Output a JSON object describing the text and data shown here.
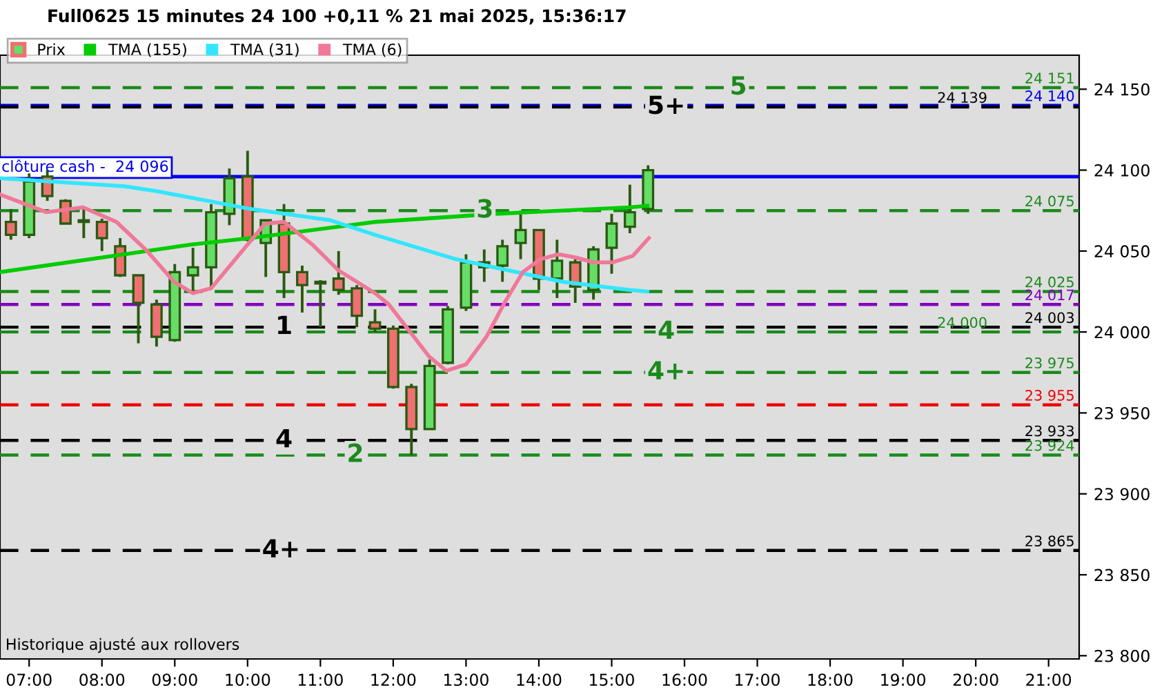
{
  "chart_data": {
    "type": "candlestick",
    "title": "Full0625 15 minutes 24 100 +0,11 % 21 mai 2025, 15:36:17",
    "xlim": [
      6.6,
      21.42
    ],
    "ylim": [
      23798,
      24171
    ],
    "xticks": [
      {
        "value": 7,
        "label": "07:00"
      },
      {
        "value": 8,
        "label": "08:00"
      },
      {
        "value": 9,
        "label": "09:00"
      },
      {
        "value": 10,
        "label": "10:00"
      },
      {
        "value": 11,
        "label": "11:00"
      },
      {
        "value": 12,
        "label": "12:00"
      },
      {
        "value": 13,
        "label": "13:00"
      },
      {
        "value": 14,
        "label": "14:00"
      },
      {
        "value": 15,
        "label": "15:00"
      },
      {
        "value": 16,
        "label": "16:00"
      },
      {
        "value": 17,
        "label": "17:00"
      },
      {
        "value": 18,
        "label": "18:00"
      },
      {
        "value": 19,
        "label": "19:00"
      },
      {
        "value": 20,
        "label": "20:00"
      },
      {
        "value": 21,
        "label": "21:00"
      }
    ],
    "yticks": [
      {
        "value": 23800,
        "label": "23 800"
      },
      {
        "value": 23850,
        "label": "23 850"
      },
      {
        "value": 23900,
        "label": "23 900"
      },
      {
        "value": 23950,
        "label": "23 950"
      },
      {
        "value": 24000,
        "label": "24 000"
      },
      {
        "value": 24050,
        "label": "24 050"
      },
      {
        "value": 24100,
        "label": "24 100"
      },
      {
        "value": 24150,
        "label": "24 150"
      }
    ],
    "grid": false,
    "legend": "top left",
    "series": [
      {
        "name": "Prix",
        "colors": [
          "#ee7070",
          "#66dd66",
          "#ee7070",
          "#ee7070",
          "#66dd66",
          "#ee7070",
          "#ee7070",
          "#ee7070",
          "#ee7070",
          "#66dd66",
          "#66dd66",
          "#66dd66",
          "#66dd66",
          "#ee7070",
          "#66dd66",
          "#ee7070",
          "#ee7070",
          "#66dd66",
          "#ee7070",
          "#ee7070",
          "#ee7070",
          "#ee7070",
          "#ee7070",
          "#66dd66",
          "#66dd66",
          "#66dd66",
          "#ee7070",
          "#66dd66",
          "#66dd66",
          "#ee7070",
          "#66dd66",
          "#ee7070",
          "#66dd66",
          "#66dd66",
          "#66dd66",
          "#66dd66"
        ],
        "x": [
          6.75,
          7.0,
          7.25,
          7.5,
          7.75,
          8.0,
          8.25,
          8.5,
          8.75,
          9.0,
          9.25,
          9.5,
          9.75,
          10.0,
          10.25,
          10.5,
          10.75,
          11.0,
          11.25,
          11.5,
          11.75,
          12.0,
          12.25,
          12.5,
          12.75,
          13.0,
          13.25,
          13.5,
          13.75,
          14.0,
          14.25,
          14.5,
          14.75,
          15.0,
          15.25,
          15.5
        ],
        "ohlc": [
          [
            24068,
            24076,
            24057,
            24060
          ],
          [
            24060,
            24098,
            24058,
            24093
          ],
          [
            24096,
            24100,
            24081,
            24084
          ],
          [
            24081,
            24082,
            24067,
            24067
          ],
          [
            24068,
            24077,
            24058,
            24069
          ],
          [
            24068,
            24070,
            24050,
            24058
          ],
          [
            24053,
            24058,
            24034,
            24035
          ],
          [
            24035,
            24035,
            23993,
            24018
          ],
          [
            24017,
            24020,
            23991,
            23997
          ],
          [
            23995,
            24042,
            23994,
            24037
          ],
          [
            24035,
            24052,
            24024,
            24040
          ],
          [
            24040,
            24079,
            24028,
            24074
          ],
          [
            24073,
            24101,
            24066,
            24095
          ],
          [
            24096,
            24112,
            24056,
            24057
          ],
          [
            24055,
            24069,
            24034,
            24069
          ],
          [
            24067,
            24079,
            24021,
            24037
          ],
          [
            24037,
            24041,
            24012,
            24029
          ],
          [
            24030,
            24032,
            24003,
            24031
          ],
          [
            24033,
            24050,
            24023,
            24026
          ],
          [
            24027,
            24029,
            24003,
            24010
          ],
          [
            24006,
            24014,
            24000,
            24002
          ],
          [
            24002,
            24004,
            23965,
            23966
          ],
          [
            23966,
            23968,
            23924,
            23940
          ],
          [
            23940,
            23983,
            23940,
            23979
          ],
          [
            23981,
            24016,
            23980,
            24014
          ],
          [
            24015,
            24048,
            24013,
            24043
          ],
          [
            24043,
            24051,
            24031,
            24040
          ],
          [
            24041,
            24057,
            24031,
            24053
          ],
          [
            24055,
            24075,
            24045,
            24063
          ],
          [
            24063,
            24063,
            24026,
            24033
          ],
          [
            24033,
            24057,
            24021,
            24044
          ],
          [
            24043,
            24045,
            24018,
            24028
          ],
          [
            24026,
            24053,
            24020,
            24051
          ],
          [
            24052,
            24073,
            24036,
            24067
          ],
          [
            24065,
            24091,
            24061,
            24074
          ],
          [
            24076,
            24103,
            24073,
            24100
          ]
        ]
      },
      {
        "name": "TMA (155)",
        "type": "line",
        "color": "#00cc00",
        "x": [
          6.6,
          8.31,
          9.22,
          10.04,
          11.75,
          13.41,
          15.25,
          15.49
        ],
        "values": [
          24037,
          24048,
          24054,
          24058,
          24068,
          24073,
          24077,
          24078
        ]
      },
      {
        "name": "TMA (31)",
        "type": "line",
        "color": "#33e6ff",
        "x": [
          6.6,
          8.31,
          8.75,
          10.04,
          11.14,
          11.75,
          12.86,
          13.59,
          14.33,
          15.25,
          15.49
        ],
        "values": [
          24095,
          24090,
          24087,
          24076,
          24069,
          24060,
          24045,
          24038,
          24031,
          24026,
          24025
        ]
      },
      {
        "name": "TMA (6)",
        "type": "line",
        "color": "#f07898",
        "x": [
          6.6,
          6.83,
          7.24,
          7.74,
          8.2,
          8.62,
          8.99,
          9.25,
          9.5,
          10.24,
          10.5,
          10.89,
          11.25,
          11.75,
          11.94,
          12.25,
          12.49,
          12.73,
          13.0,
          13.28,
          13.54,
          13.78,
          14.02,
          14.27,
          14.51,
          14.75,
          15.01,
          15.29,
          15.51
        ],
        "values": [
          24085,
          24081,
          24074,
          24077,
          24068,
          24050,
          24031,
          24024,
          24027,
          24067,
          24068,
          24054,
          24038,
          24024,
          24017,
          23999,
          23985,
          23976,
          23980,
          23997,
          24019,
          24037,
          24045,
          24048,
          24046,
          24043,
          24043,
          24047,
          24058
        ]
      }
    ],
    "ref_lines": [
      {
        "axis": "y",
        "value": 24151,
        "label": "24 151",
        "color": "#1a8a1a",
        "line_style": "dashed"
      },
      {
        "axis": "y",
        "value": 24140,
        "label": "24 140",
        "color": "#0000ee",
        "line_style": "dashed"
      },
      {
        "axis": "y",
        "value": 24139,
        "label": "24 139",
        "color": "#000000",
        "line_style": "dashed"
      },
      {
        "axis": "y",
        "value": 24096,
        "label": "clôture cash -  24 096",
        "color": "#0000ee",
        "line_style": "solid"
      },
      {
        "axis": "y",
        "value": 24075,
        "label": "24 075",
        "color": "#1a8a1a",
        "line_style": "dashed"
      },
      {
        "axis": "y",
        "value": 24025,
        "label": "24 025",
        "color": "#1a8a1a",
        "line_style": "dashed"
      },
      {
        "axis": "y",
        "value": 24017,
        "label": "24 017",
        "color": "#8000c0",
        "line_style": "dashed"
      },
      {
        "axis": "y",
        "value": 24003,
        "label": "24 003",
        "color": "#000000",
        "line_style": "dashed"
      },
      {
        "axis": "y",
        "value": 24000,
        "label": "24 000",
        "color": "#1a8a1a",
        "line_style": "dashed"
      },
      {
        "axis": "y",
        "value": 23975,
        "label": "23 975",
        "color": "#1a8a1a",
        "line_style": "dashed"
      },
      {
        "axis": "y",
        "value": 23955,
        "label": "23 955",
        "color": "#ee0000",
        "line_style": "dashed"
      },
      {
        "axis": "y",
        "value": 23933,
        "label": "23 933",
        "color": "#000000",
        "line_style": "dashed"
      },
      {
        "axis": "y",
        "value": 23924,
        "label": "23 924",
        "color": "#1a8a1a",
        "line_style": "dashed"
      },
      {
        "axis": "y",
        "value": 23865,
        "label": "23 865",
        "color": "#000000",
        "line_style": "dashed"
      }
    ],
    "annotations": [
      {
        "text": "5+",
        "x": 15.75,
        "y": 24139
      },
      {
        "text": "5",
        "x": 16.74,
        "y": 24151
      },
      {
        "text": "3",
        "x": 13.26,
        "y": 24075
      },
      {
        "text": "1",
        "x": 10.5,
        "y": 24003
      },
      {
        "text": "4",
        "x": 10.5,
        "y": 23933
      },
      {
        "text": "2",
        "x": 11.48,
        "y": 23924
      },
      {
        "text": "4",
        "x": 15.75,
        "y": 24000
      },
      {
        "text": "4+",
        "x": 15.75,
        "y": 23975
      },
      {
        "text": "4+",
        "x": 10.46,
        "y": 23865
      },
      "Historique ajusté aux rollovers"
    ]
  }
}
